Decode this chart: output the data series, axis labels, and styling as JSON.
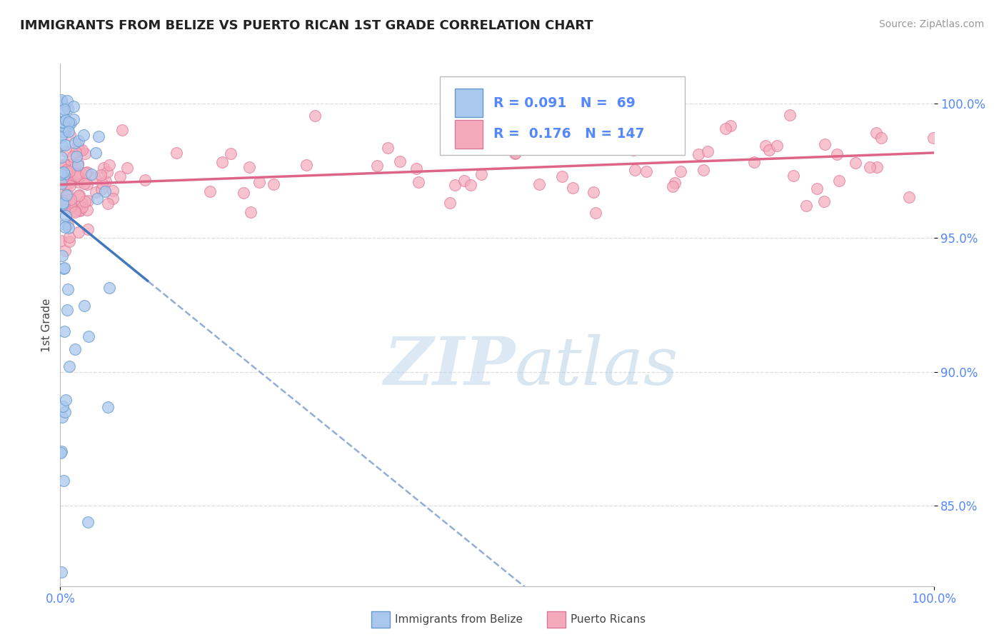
{
  "title": "IMMIGRANTS FROM BELIZE VS PUERTO RICAN 1ST GRADE CORRELATION CHART",
  "source": "Source: ZipAtlas.com",
  "ylabel": "1st Grade",
  "xlim": [
    0.0,
    100.0
  ],
  "ylim": [
    82.0,
    101.5
  ],
  "yticks": [
    85.0,
    90.0,
    95.0,
    100.0
  ],
  "ytick_labels": [
    "85.0%",
    "90.0%",
    "95.0%",
    "100.0%"
  ],
  "xtick_labels": [
    "0.0%",
    "100.0%"
  ],
  "xtick_positions": [
    0.0,
    100.0
  ],
  "legend_R1": "0.091",
  "legend_N1": "69",
  "legend_R2": "0.176",
  "legend_N2": "147",
  "color_belize_fill": "#aac8ee",
  "color_belize_edge": "#6699cc",
  "color_pr_fill": "#f5aabb",
  "color_pr_edge": "#dd7799",
  "color_belize_line": "#4477bb",
  "color_belize_dash": "#7799cc",
  "color_pr_line": "#dd6688",
  "title_color": "#222222",
  "source_color": "#999999",
  "tick_color": "#5588ff",
  "grid_color": "#dddddd",
  "watermark_ZIP_color": "#c8dff0",
  "watermark_atlas_color": "#b8d0e8"
}
